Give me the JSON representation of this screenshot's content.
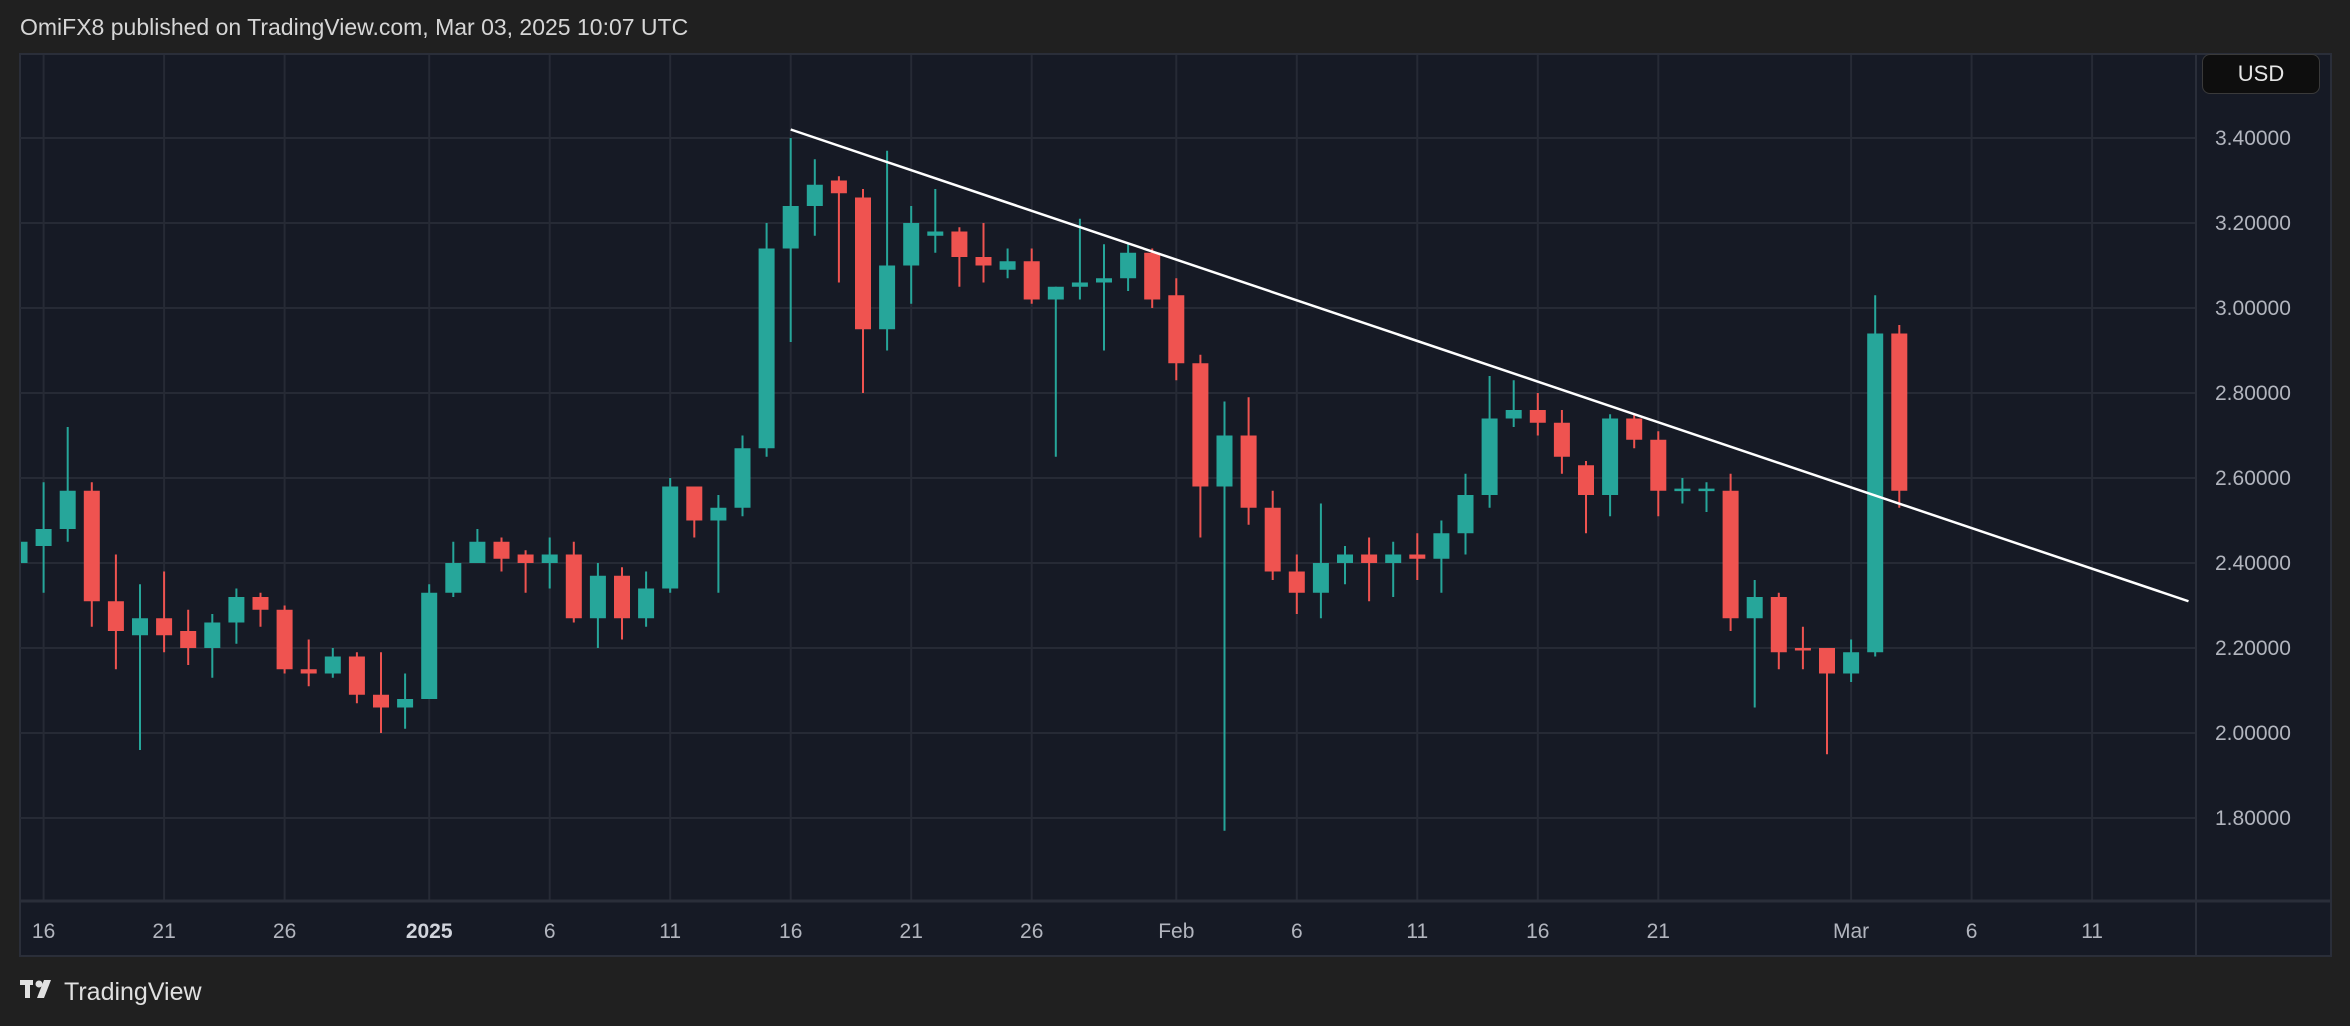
{
  "header": {
    "title": "OmiFX8 published on TradingView.com, Mar 03, 2025 10:07 UTC"
  },
  "currency_button": "USD",
  "footer": {
    "logo_text": "TradingView",
    "logo_mark": "TV"
  },
  "colors": {
    "up": "#26a69a",
    "down": "#ef5350",
    "grid": "#262a35",
    "background": "#161a25",
    "trendline": "#ffffff"
  },
  "chart_data": {
    "type": "candlestick",
    "title": "",
    "ylabel": "USD",
    "ylim": [
      1.64,
      3.59
    ],
    "y_ticks": [
      "3.40000",
      "3.20000",
      "3.00000",
      "2.80000",
      "2.60000",
      "2.40000",
      "2.20000",
      "2.00000",
      "1.80000"
    ],
    "x_ticks": [
      {
        "label": "16",
        "date": "2024-12-16"
      },
      {
        "label": "21",
        "date": "2024-12-21"
      },
      {
        "label": "26",
        "date": "2024-12-26"
      },
      {
        "label": "2025",
        "date": "2025-01-01",
        "bold": true
      },
      {
        "label": "6",
        "date": "2025-01-06"
      },
      {
        "label": "11",
        "date": "2025-01-11"
      },
      {
        "label": "16",
        "date": "2025-01-16"
      },
      {
        "label": "21",
        "date": "2025-01-21"
      },
      {
        "label": "26",
        "date": "2025-01-26"
      },
      {
        "label": "Feb",
        "date": "2025-02-01"
      },
      {
        "label": "6",
        "date": "2025-02-06"
      },
      {
        "label": "11",
        "date": "2025-02-11"
      },
      {
        "label": "16",
        "date": "2025-02-16"
      },
      {
        "label": "21",
        "date": "2025-02-21"
      },
      {
        "label": "Mar",
        "date": "2025-03-01"
      },
      {
        "label": "6",
        "date": "2025-03-06"
      },
      {
        "label": "11",
        "date": "2025-03-11"
      }
    ],
    "x_range": [
      "2024-12-15",
      "2025-03-15"
    ],
    "grid": true,
    "trendline": {
      "start": {
        "date": "2025-01-16",
        "price": 3.42
      },
      "end": {
        "date": "2025-03-15",
        "price": 2.31
      }
    },
    "ohlc_columns": [
      "date",
      "open",
      "high",
      "low",
      "close"
    ],
    "candles": [
      [
        "2024-12-15",
        2.4,
        2.46,
        2.39,
        2.45
      ],
      [
        "2024-12-16",
        2.44,
        2.59,
        2.33,
        2.48
      ],
      [
        "2024-12-17",
        2.48,
        2.72,
        2.45,
        2.57
      ],
      [
        "2024-12-18",
        2.57,
        2.59,
        2.25,
        2.31
      ],
      [
        "2024-12-19",
        2.31,
        2.42,
        2.15,
        2.24
      ],
      [
        "2024-12-20",
        2.23,
        2.35,
        1.96,
        2.27
      ],
      [
        "2024-12-21",
        2.27,
        2.38,
        2.19,
        2.23
      ],
      [
        "2024-12-22",
        2.24,
        2.29,
        2.16,
        2.2
      ],
      [
        "2024-12-23",
        2.2,
        2.28,
        2.13,
        2.26
      ],
      [
        "2024-12-24",
        2.26,
        2.34,
        2.21,
        2.32
      ],
      [
        "2024-12-25",
        2.32,
        2.33,
        2.25,
        2.29
      ],
      [
        "2024-12-26",
        2.29,
        2.3,
        2.14,
        2.15
      ],
      [
        "2024-12-27",
        2.15,
        2.22,
        2.11,
        2.14
      ],
      [
        "2024-12-28",
        2.14,
        2.2,
        2.13,
        2.18
      ],
      [
        "2024-12-29",
        2.18,
        2.19,
        2.07,
        2.09
      ],
      [
        "2024-12-30",
        2.09,
        2.19,
        2.0,
        2.06
      ],
      [
        "2024-12-31",
        2.06,
        2.14,
        2.01,
        2.08
      ],
      [
        "2025-01-01",
        2.08,
        2.35,
        2.08,
        2.33
      ],
      [
        "2025-01-02",
        2.33,
        2.45,
        2.32,
        2.4
      ],
      [
        "2025-01-03",
        2.4,
        2.48,
        2.4,
        2.45
      ],
      [
        "2025-01-04",
        2.45,
        2.46,
        2.38,
        2.41
      ],
      [
        "2025-01-05",
        2.42,
        2.43,
        2.33,
        2.4
      ],
      [
        "2025-01-06",
        2.4,
        2.46,
        2.34,
        2.42
      ],
      [
        "2025-01-07",
        2.42,
        2.45,
        2.26,
        2.27
      ],
      [
        "2025-01-08",
        2.27,
        2.4,
        2.2,
        2.37
      ],
      [
        "2025-01-09",
        2.37,
        2.39,
        2.22,
        2.27
      ],
      [
        "2025-01-10",
        2.27,
        2.38,
        2.25,
        2.34
      ],
      [
        "2025-01-11",
        2.34,
        2.6,
        2.33,
        2.58
      ],
      [
        "2025-01-12",
        2.58,
        2.58,
        2.46,
        2.5
      ],
      [
        "2025-01-13",
        2.5,
        2.56,
        2.33,
        2.53
      ],
      [
        "2025-01-14",
        2.53,
        2.7,
        2.51,
        2.67
      ],
      [
        "2025-01-15",
        2.67,
        3.2,
        2.65,
        3.14
      ],
      [
        "2025-01-16",
        3.14,
        3.4,
        2.92,
        3.24
      ],
      [
        "2025-01-17",
        3.24,
        3.35,
        3.17,
        3.29
      ],
      [
        "2025-01-18",
        3.3,
        3.31,
        3.06,
        3.27
      ],
      [
        "2025-01-19",
        3.26,
        3.28,
        2.8,
        2.95
      ],
      [
        "2025-01-20",
        2.95,
        3.37,
        2.9,
        3.1
      ],
      [
        "2025-01-21",
        3.1,
        3.24,
        3.01,
        3.2
      ],
      [
        "2025-01-22",
        3.17,
        3.28,
        3.13,
        3.18
      ],
      [
        "2025-01-23",
        3.18,
        3.19,
        3.05,
        3.12
      ],
      [
        "2025-01-24",
        3.12,
        3.2,
        3.06,
        3.1
      ],
      [
        "2025-01-25",
        3.09,
        3.14,
        3.07,
        3.11
      ],
      [
        "2025-01-26",
        3.11,
        3.14,
        3.01,
        3.02
      ],
      [
        "2025-01-27",
        3.02,
        3.05,
        2.65,
        3.05
      ],
      [
        "2025-01-28",
        3.05,
        3.21,
        3.02,
        3.06
      ],
      [
        "2025-01-29",
        3.06,
        3.15,
        2.9,
        3.07
      ],
      [
        "2025-01-30",
        3.07,
        3.15,
        3.04,
        3.13
      ],
      [
        "2025-01-31",
        3.13,
        3.14,
        3.0,
        3.02
      ],
      [
        "2025-02-01",
        3.03,
        3.07,
        2.83,
        2.87
      ],
      [
        "2025-02-02",
        2.87,
        2.89,
        2.46,
        2.58
      ],
      [
        "2025-02-03",
        2.58,
        2.78,
        1.77,
        2.7
      ],
      [
        "2025-02-04",
        2.7,
        2.79,
        2.49,
        2.53
      ],
      [
        "2025-02-05",
        2.53,
        2.57,
        2.36,
        2.38
      ],
      [
        "2025-02-06",
        2.38,
        2.42,
        2.28,
        2.33
      ],
      [
        "2025-02-07",
        2.33,
        2.54,
        2.27,
        2.4
      ],
      [
        "2025-02-08",
        2.4,
        2.44,
        2.35,
        2.42
      ],
      [
        "2025-02-09",
        2.42,
        2.46,
        2.31,
        2.4
      ],
      [
        "2025-02-10",
        2.4,
        2.45,
        2.32,
        2.42
      ],
      [
        "2025-02-11",
        2.42,
        2.47,
        2.36,
        2.41
      ],
      [
        "2025-02-12",
        2.41,
        2.5,
        2.33,
        2.47
      ],
      [
        "2025-02-13",
        2.47,
        2.61,
        2.42,
        2.56
      ],
      [
        "2025-02-14",
        2.56,
        2.84,
        2.53,
        2.74
      ],
      [
        "2025-02-15",
        2.74,
        2.83,
        2.72,
        2.76
      ],
      [
        "2025-02-16",
        2.76,
        2.8,
        2.7,
        2.73
      ],
      [
        "2025-02-17",
        2.73,
        2.76,
        2.61,
        2.65
      ],
      [
        "2025-02-18",
        2.63,
        2.64,
        2.47,
        2.56
      ],
      [
        "2025-02-19",
        2.56,
        2.75,
        2.51,
        2.74
      ],
      [
        "2025-02-20",
        2.74,
        2.75,
        2.67,
        2.69
      ],
      [
        "2025-02-21",
        2.69,
        2.71,
        2.51,
        2.57
      ],
      [
        "2025-02-22",
        2.57,
        2.6,
        2.54,
        2.575
      ],
      [
        "2025-02-23",
        2.57,
        2.59,
        2.52,
        2.575
      ],
      [
        "2025-02-24",
        2.57,
        2.61,
        2.24,
        2.27
      ],
      [
        "2025-02-25",
        2.27,
        2.36,
        2.06,
        2.32
      ],
      [
        "2025-02-26",
        2.32,
        2.33,
        2.15,
        2.19
      ],
      [
        "2025-02-27",
        2.2,
        2.25,
        2.15,
        2.195
      ],
      [
        "2025-02-28",
        2.2,
        2.2,
        1.95,
        2.14
      ],
      [
        "2025-03-01",
        2.14,
        2.22,
        2.12,
        2.19
      ],
      [
        "2025-03-02",
        2.19,
        3.03,
        2.18,
        2.94
      ],
      [
        "2025-03-03",
        2.94,
        2.96,
        2.53,
        2.57
      ]
    ]
  }
}
